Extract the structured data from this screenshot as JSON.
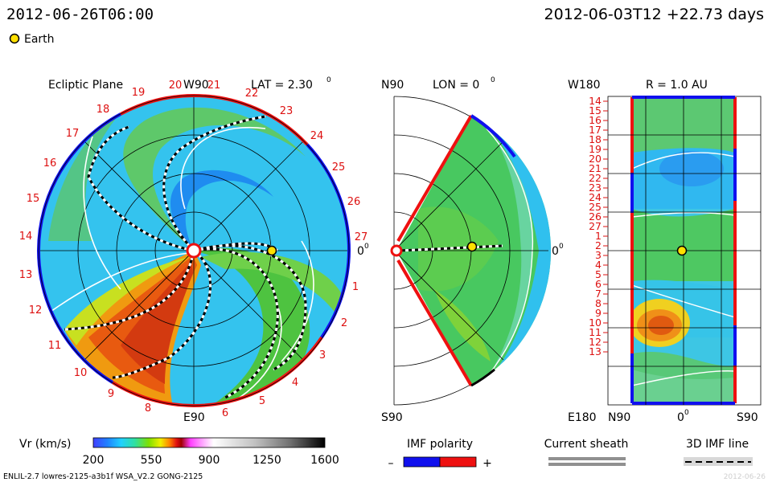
{
  "header": {
    "current_time": "2012-06-26T06:00",
    "ref_time": "2012-06-03T12 +22.73 days",
    "earth_label": "Earth"
  },
  "ecliptic": {
    "title": "Ecliptic Plane",
    "top_label": "W90",
    "bottom_label": "E90",
    "right_label": "0",
    "lat_label": "LAT = 2.30",
    "day_numbers": [
      "2",
      "3",
      "4",
      "5",
      "6",
      "8",
      "9",
      "10",
      "11",
      "12",
      "13",
      "14",
      "15",
      "16",
      "17",
      "18",
      "19",
      "20",
      "21",
      "22",
      "23",
      "24",
      "25",
      "26",
      "27",
      "1"
    ]
  },
  "meridional": {
    "top_label": "N90",
    "bottom_label": "S90",
    "right_label": "0",
    "lon_label": "LON = 0"
  },
  "synoptic": {
    "top_left_label": "W180",
    "bottom_left_label": "E180",
    "r_label": "R = 1.0 AU",
    "x_labels": [
      "N90",
      "0",
      "S90"
    ],
    "day_rows": [
      "14",
      "15",
      "16",
      "17",
      "18",
      "19",
      "20",
      "21",
      "22",
      "23",
      "24",
      "25",
      "26",
      "27",
      "1",
      "2",
      "3",
      "4",
      "5",
      "6",
      "7",
      "8",
      "9",
      "10",
      "11",
      "12",
      "13"
    ]
  },
  "colorbar": {
    "label": "Vr (km/s)",
    "ticks": [
      "200",
      "550",
      "900",
      "1250",
      "1600"
    ]
  },
  "legend": {
    "imf_title": "IMF polarity",
    "imf_minus": "–",
    "imf_plus": "+",
    "sheath_title": "Current sheath",
    "imf3d_title": "3D IMF line"
  },
  "footer": {
    "model_info": "ENLIL-2.7 lowres-2125-a3b1f WSA_V2.2 GONG-2125",
    "watermark_tail": "2012-06-26"
  },
  "colors": {
    "imf_negative": "#1010ee",
    "imf_positive": "#ee1010",
    "earth": "#ffe000",
    "label_red": "#dd1010"
  }
}
